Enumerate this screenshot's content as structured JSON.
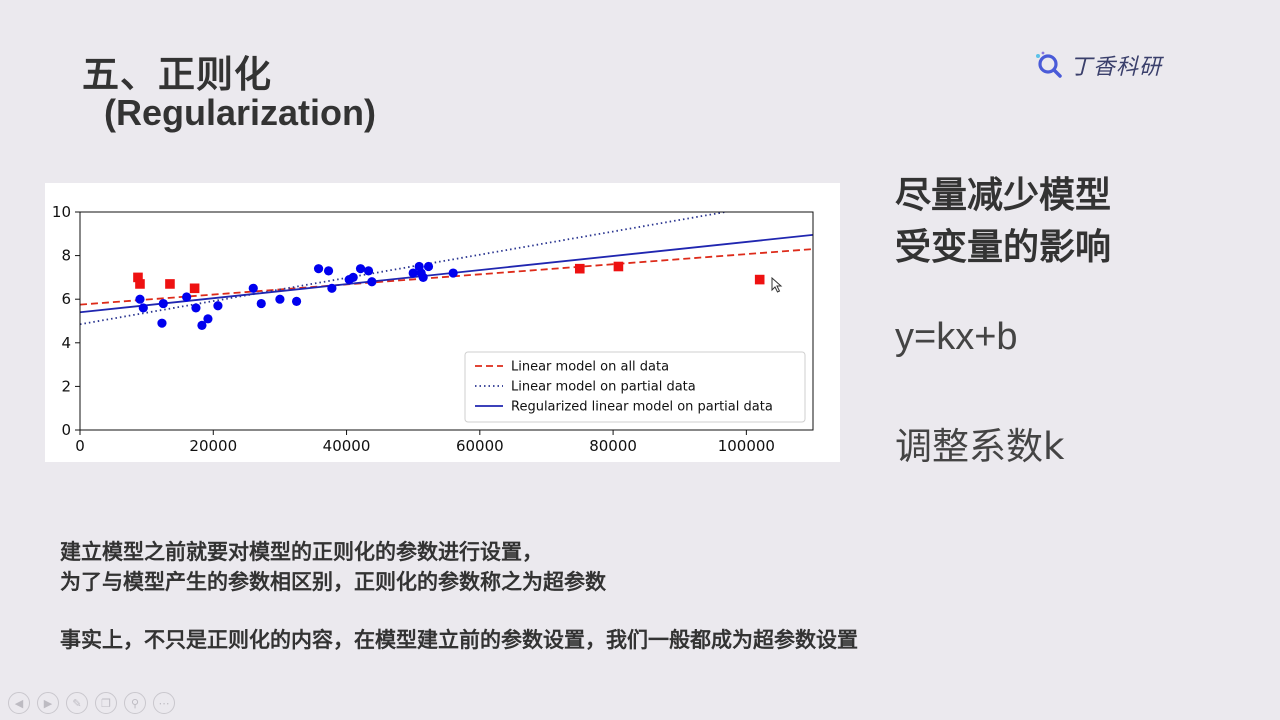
{
  "slide": {
    "title": "五、正则化",
    "subtitle": "(Regularization)",
    "logo_text": "丁香科研",
    "side_heading_line1": "尽量减少模型",
    "side_heading_line2": "受变量的影响",
    "formula": "y=kx+b",
    "adjust_text": "调整系数k",
    "para1_line1": "建立模型之前就要对模型的正则化的参数进行设置，",
    "para1_line2": "为了与模型产生的参数相区别，正则化的参数称之为超参数",
    "para2": "事实上，不只是正则化的内容，在模型建立前的参数设置，我们一般都成为超参数设置"
  },
  "nav_icons": [
    "prev-icon",
    "next-icon",
    "pen-icon",
    "copy-icon",
    "zoom-icon",
    "more-icon"
  ],
  "chart_data": {
    "type": "scatter",
    "xlim": [
      0,
      110000
    ],
    "ylim": [
      0,
      10
    ],
    "xticks": [
      0,
      20000,
      40000,
      60000,
      80000,
      100000
    ],
    "yticks": [
      0,
      2,
      4,
      6,
      8,
      10
    ],
    "grid": false,
    "legend_position": "lower-right",
    "scatter_series": [
      {
        "color": "#0000ee",
        "marker": "circle",
        "points": [
          [
            9000,
            6.0
          ],
          [
            9500,
            5.6
          ],
          [
            12300,
            4.9
          ],
          [
            12500,
            5.8
          ],
          [
            16000,
            6.1
          ],
          [
            17400,
            5.6
          ],
          [
            18300,
            4.8
          ],
          [
            19200,
            5.1
          ],
          [
            20700,
            5.7
          ],
          [
            26000,
            6.5
          ],
          [
            27200,
            5.8
          ],
          [
            30000,
            6.0
          ],
          [
            32500,
            5.9
          ],
          [
            35800,
            7.4
          ],
          [
            37300,
            7.3
          ],
          [
            37800,
            6.5
          ],
          [
            40400,
            6.9
          ],
          [
            41000,
            7.0
          ],
          [
            42100,
            7.4
          ],
          [
            43300,
            7.3
          ],
          [
            43800,
            6.8
          ],
          [
            50000,
            7.2
          ],
          [
            50900,
            7.5
          ],
          [
            51200,
            7.2
          ],
          [
            51500,
            7.0
          ],
          [
            52300,
            7.5
          ],
          [
            56000,
            7.2
          ]
        ]
      },
      {
        "color": "#ee1111",
        "marker": "square",
        "points": [
          [
            8700,
            7.0
          ],
          [
            9000,
            6.7
          ],
          [
            13500,
            6.7
          ],
          [
            17200,
            6.5
          ],
          [
            75000,
            7.4
          ],
          [
            80800,
            7.5
          ],
          [
            102000,
            6.9
          ]
        ]
      }
    ],
    "lines": [
      {
        "name": "Linear model on all data",
        "style": "dashed",
        "color": "#dd2b1a",
        "points": [
          [
            0,
            5.75
          ],
          [
            110000,
            8.3
          ]
        ]
      },
      {
        "name": "Linear model on partial data",
        "style": "dotted",
        "color": "#2a3590",
        "points": [
          [
            0,
            4.85
          ],
          [
            110000,
            10.7
          ]
        ]
      },
      {
        "name": "Regularized linear model on partial data",
        "style": "solid",
        "color": "#2026b0",
        "points": [
          [
            0,
            5.4
          ],
          [
            110000,
            8.95
          ]
        ]
      }
    ]
  }
}
